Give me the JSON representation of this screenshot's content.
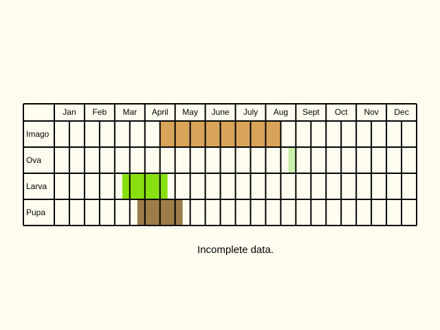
{
  "chart_data": {
    "type": "table",
    "months": [
      "Jan",
      "Feb",
      "Mar",
      "April",
      "May",
      "June",
      "July",
      "Aug",
      "Sept",
      "Oct",
      "Nov",
      "Dec"
    ],
    "periods_per_month": 2,
    "stages": [
      {
        "name": "Imago",
        "color": "#d9a45a",
        "start_period": 7,
        "end_period": 15
      },
      {
        "name": "Ova",
        "color": "#c8eeaa",
        "start_period": 15.5,
        "end_period": 16
      },
      {
        "name": "Larva",
        "color": "#88e010",
        "start_period": 4.5,
        "end_period": 7.5
      },
      {
        "name": "Pupa",
        "color": "#9c7c48",
        "start_period": 5.5,
        "end_period": 8.5
      }
    ],
    "note": "Incomplete data."
  }
}
